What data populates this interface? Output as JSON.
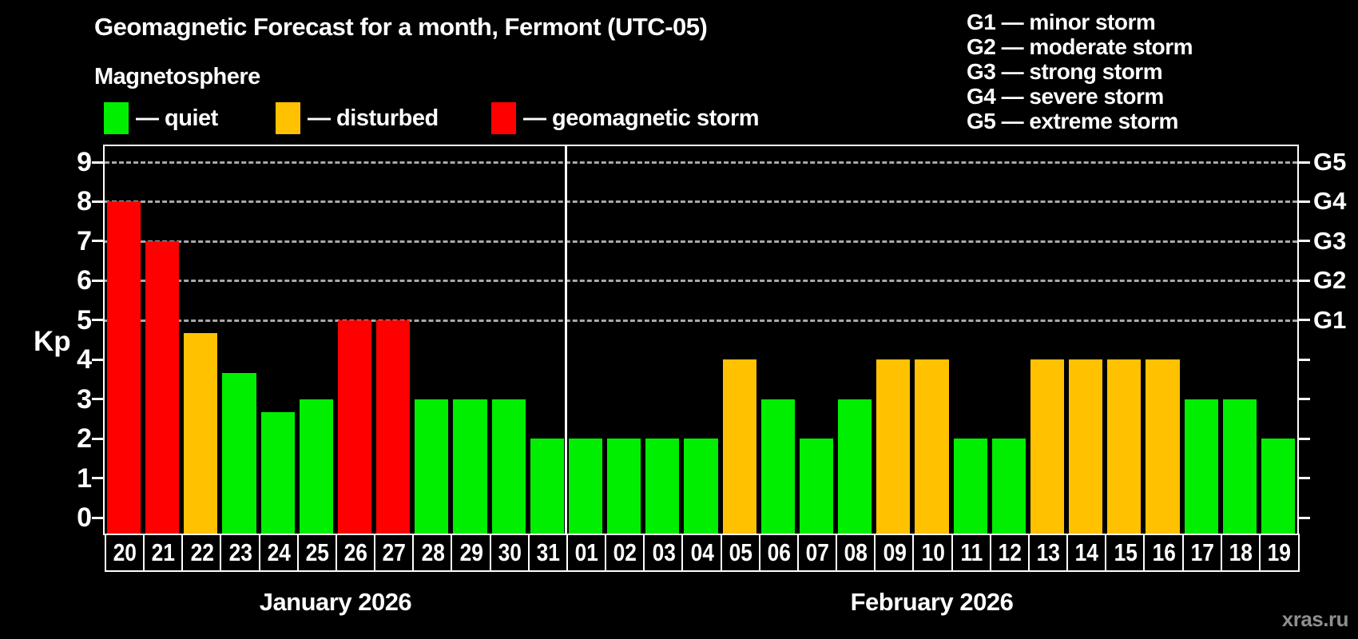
{
  "header": {
    "title": "Geomagnetic Forecast for a month, Fermont (UTC-05)",
    "subtitle": "Magnetosphere"
  },
  "legend": {
    "items": [
      {
        "key": "quiet",
        "label": "— quiet",
        "color": "#00ee00"
      },
      {
        "key": "disturbed",
        "label": "— disturbed",
        "color": "#ffc100"
      },
      {
        "key": "storm",
        "label": "— geomagnetic storm",
        "color": "#ff0000"
      }
    ]
  },
  "g_scale": {
    "items": [
      "G1 — minor storm",
      "G2 — moderate storm",
      "G3 — strong storm",
      "G4 — severe storm",
      "G5 — extreme storm"
    ]
  },
  "footer": {
    "watermark": "xras.ru"
  },
  "chart_data": {
    "type": "bar",
    "title": "Geomagnetic Forecast for a month, Fermont (UTC-05)",
    "xlabel": "",
    "ylabel": "Kp",
    "ylim": [
      0,
      9.4
    ],
    "y_ticks": [
      0,
      1,
      2,
      3,
      4,
      5,
      6,
      7,
      8,
      9
    ],
    "grid_levels": [
      5,
      6,
      7,
      8,
      9
    ],
    "grid_style": "dashed",
    "legend_position": "top",
    "right_axis_labels": {
      "5": "G1",
      "6": "G2",
      "7": "G3",
      "8": "G4",
      "9": "G5"
    },
    "status_colors": {
      "quiet": "#00ee00",
      "disturbed": "#ffc100",
      "storm": "#ff0000"
    },
    "months": [
      {
        "name": "January 2026",
        "days": [
          {
            "day": "20",
            "kp": 8,
            "status": "storm"
          },
          {
            "day": "21",
            "kp": 7,
            "status": "storm"
          },
          {
            "day": "22",
            "kp": 4.67,
            "status": "disturbed"
          },
          {
            "day": "23",
            "kp": 3.67,
            "status": "quiet"
          },
          {
            "day": "24",
            "kp": 2.67,
            "status": "quiet"
          },
          {
            "day": "25",
            "kp": 3,
            "status": "quiet"
          },
          {
            "day": "26",
            "kp": 5,
            "status": "storm"
          },
          {
            "day": "27",
            "kp": 5,
            "status": "storm"
          },
          {
            "day": "28",
            "kp": 3,
            "status": "quiet"
          },
          {
            "day": "29",
            "kp": 3,
            "status": "quiet"
          },
          {
            "day": "30",
            "kp": 3,
            "status": "quiet"
          },
          {
            "day": "31",
            "kp": 2,
            "status": "quiet"
          }
        ]
      },
      {
        "name": "February 2026",
        "days": [
          {
            "day": "01",
            "kp": 2,
            "status": "quiet"
          },
          {
            "day": "02",
            "kp": 2,
            "status": "quiet"
          },
          {
            "day": "03",
            "kp": 2,
            "status": "quiet"
          },
          {
            "day": "04",
            "kp": 2,
            "status": "quiet"
          },
          {
            "day": "05",
            "kp": 4,
            "status": "disturbed"
          },
          {
            "day": "06",
            "kp": 3,
            "status": "quiet"
          },
          {
            "day": "07",
            "kp": 2,
            "status": "quiet"
          },
          {
            "day": "08",
            "kp": 3,
            "status": "quiet"
          },
          {
            "day": "09",
            "kp": 4,
            "status": "disturbed"
          },
          {
            "day": "10",
            "kp": 4,
            "status": "disturbed"
          },
          {
            "day": "11",
            "kp": 2,
            "status": "quiet"
          },
          {
            "day": "12",
            "kp": 2,
            "status": "quiet"
          },
          {
            "day": "13",
            "kp": 4,
            "status": "disturbed"
          },
          {
            "day": "14",
            "kp": 4,
            "status": "disturbed"
          },
          {
            "day": "15",
            "kp": 4,
            "status": "disturbed"
          },
          {
            "day": "16",
            "kp": 4,
            "status": "disturbed"
          },
          {
            "day": "17",
            "kp": 3,
            "status": "quiet"
          },
          {
            "day": "18",
            "kp": 3,
            "status": "quiet"
          },
          {
            "day": "19",
            "kp": 2,
            "status": "quiet"
          }
        ]
      }
    ]
  }
}
